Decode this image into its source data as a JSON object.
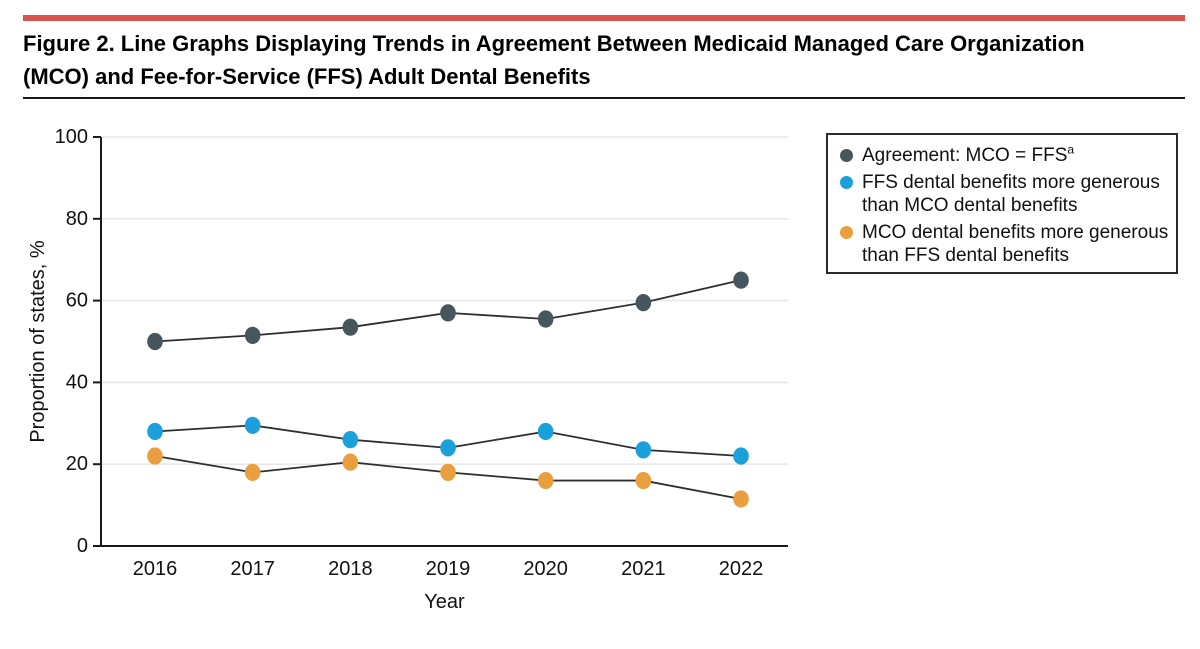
{
  "figure": {
    "title": "Figure 2. Line Graphs Displaying Trends in Agreement Between Medicaid Managed Care Organization (MCO) and Fee-for-Service (FFS) Adult Dental Benefits"
  },
  "chart_data": {
    "type": "line",
    "x": [
      2016,
      2017,
      2018,
      2019,
      2020,
      2021,
      2022
    ],
    "xlabel": "Year",
    "ylabel": "Proportion of states, %",
    "ylim": [
      0,
      100
    ],
    "yticks": [
      0,
      20,
      40,
      60,
      80,
      100
    ],
    "grid": true,
    "legend_position": "top-right",
    "series": [
      {
        "name": "Agreement: MCO = FFS (a)",
        "color": "#45565F",
        "values": [
          50,
          51.5,
          53.5,
          57,
          55.5,
          59.5,
          65
        ]
      },
      {
        "name": "FFS dental benefits more generous than MCO dental benefits",
        "color": "#1CA0DC",
        "values": [
          28,
          29.5,
          26,
          24,
          28,
          23.5,
          22
        ]
      },
      {
        "name": "MCO dental benefits more generous than FFS dental benefits",
        "color": "#E99F3D",
        "values": [
          22,
          18,
          20.5,
          18,
          16,
          16,
          11.5
        ]
      }
    ]
  },
  "legend": {
    "items": [
      {
        "lines": [
          "Agreement: MCO = FFS"
        ],
        "superscript": "a"
      },
      {
        "lines": [
          "FFS dental benefits more generous",
          "than MCO dental benefits"
        ]
      },
      {
        "lines": [
          "MCO dental benefits more generous",
          "than FFS dental benefits"
        ]
      }
    ]
  },
  "colors": {
    "accent_bar": "#D6544D",
    "line": "#2E2E2E",
    "grid": "#E8E8E8",
    "axis": "#1a1a1a",
    "text": "#111111"
  }
}
